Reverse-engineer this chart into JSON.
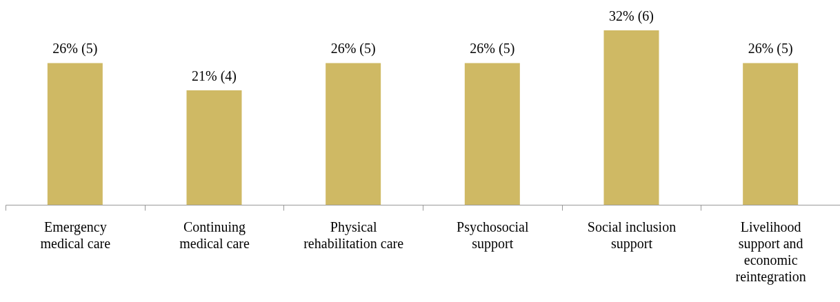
{
  "chart_data": {
    "type": "bar",
    "categories": [
      "Emergency medical care",
      "Continuing medical care",
      "Physical rehabilitation care",
      "Psychosocial support",
      "Social inclusion support",
      "Livelihood support and economic reintegration"
    ],
    "values": [
      26,
      21,
      26,
      26,
      32,
      26
    ],
    "value_labels": [
      "26% (5)",
      "21% (4)",
      "26% (5)",
      "26% (5)",
      "32% (6)",
      "26% (5)"
    ],
    "color": "#cfb964"
  }
}
